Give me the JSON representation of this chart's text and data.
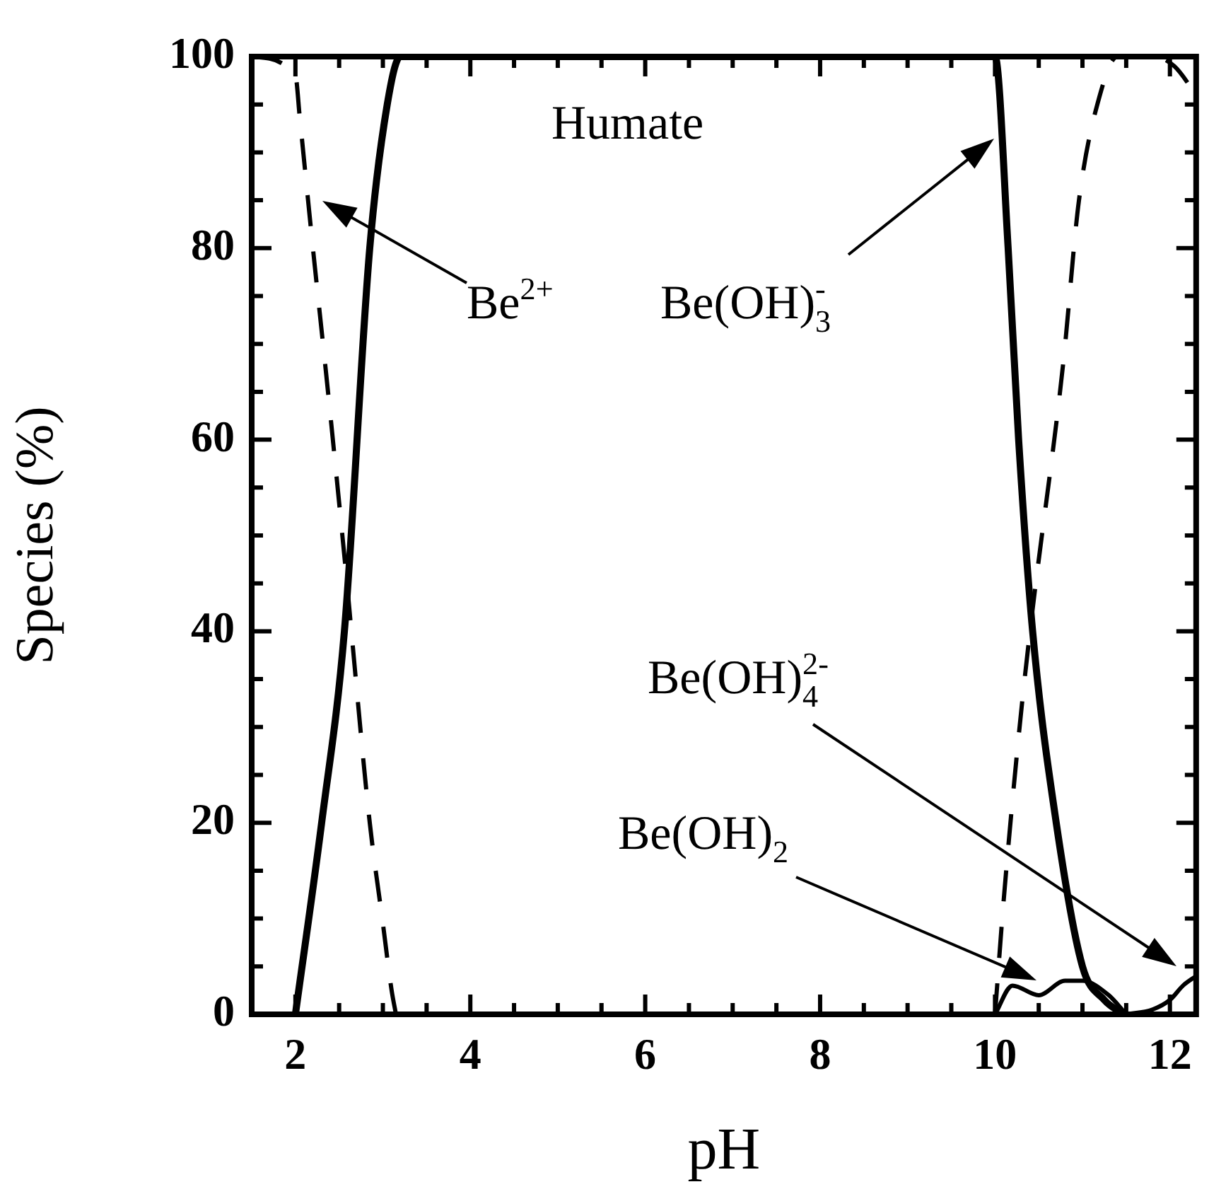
{
  "chart_data": {
    "type": "line",
    "xlabel": "pH",
    "ylabel": "Species (%)",
    "xlim": [
      1.5,
      12.3
    ],
    "ylim": [
      0,
      100
    ],
    "xticks": [
      2,
      {
        "value": 2.5,
        "label": null
      },
      {
        "value": 3,
        "label": null
      },
      {
        "value": 3.5,
        "label": null
      },
      4,
      {
        "value": 4.5,
        "label": null
      },
      {
        "value": 5,
        "label": null
      },
      {
        "value": 5.5,
        "label": null
      },
      6,
      {
        "value": 6.5,
        "label": null
      },
      {
        "value": 7,
        "label": null
      },
      {
        "value": 7.5,
        "label": null
      },
      8,
      {
        "value": 8.5,
        "label": null
      },
      {
        "value": 9,
        "label": null
      },
      {
        "value": 9.5,
        "label": null
      },
      10,
      {
        "value": 10.5,
        "label": null
      },
      {
        "value": 11,
        "label": null
      },
      {
        "value": 11.5,
        "label": null
      },
      12
    ],
    "yticks": [
      0,
      {
        "value": 5,
        "label": null
      },
      {
        "value": 10,
        "label": null
      },
      {
        "value": 15,
        "label": null
      },
      20,
      {
        "value": 25,
        "label": null
      },
      {
        "value": 30,
        "label": null
      },
      {
        "value": 35,
        "label": null
      },
      40,
      {
        "value": 45,
        "label": null
      },
      {
        "value": 50,
        "label": null
      },
      {
        "value": 55,
        "label": null
      },
      60,
      {
        "value": 65,
        "label": null
      },
      {
        "value": 70,
        "label": null
      },
      {
        "value": 75,
        "label": null
      },
      80,
      {
        "value": 85,
        "label": null
      },
      {
        "value": 90,
        "label": null
      },
      {
        "value": 95,
        "label": null
      },
      100
    ],
    "grid": false,
    "legend": false,
    "marker": "none",
    "series": [
      {
        "color": "#000000",
        "line_style": "solid",
        "x": [
          2.0,
          2.3,
          2.56,
          2.85,
          3.05,
          3.2,
          10.0,
          10.15,
          10.27,
          10.43,
          10.7,
          11.0,
          11.25,
          11.47
        ],
        "values": [
          0,
          20,
          40,
          80,
          95,
          100,
          100,
          80,
          60,
          40,
          20,
          5,
          1.5,
          0
        ]
      },
      {
        "color": "#000000",
        "line_style": "dashed",
        "x": [
          1.5,
          2.0,
          2.05,
          2.2,
          2.35,
          2.45,
          2.6,
          2.64,
          2.85,
          3.0,
          3.1,
          3.15
        ],
        "values": [
          100,
          98,
          93.6,
          80,
          67,
          58,
          44,
          40,
          20,
          9.5,
          2.5,
          0
        ]
      },
      {
        "color": "#000000",
        "line_style": "dashed",
        "x": [
          10.0,
          10.1,
          10.27,
          10.4,
          10.78,
          10.96,
          11.2,
          11.4,
          11.8,
          12.05,
          12.3
        ],
        "values": [
          0,
          12,
          29,
          40,
          68,
          85,
          96,
          100,
          100,
          99,
          96
        ]
      },
      {
        "color": "#000000",
        "line_style": "solid",
        "x": [
          10.0,
          10.2,
          10.5,
          10.8,
          11.0,
          11.3,
          11.5
        ],
        "values": [
          0,
          3,
          2,
          3.5,
          3.5,
          2,
          0
        ]
      },
      {
        "color": "#000000",
        "line_style": "solid",
        "x": [
          11.5,
          11.8,
          12.0,
          12.15,
          12.3
        ],
        "values": [
          0,
          0.5,
          1.5,
          3,
          4
        ]
      }
    ],
    "annotations": [
      "Humate",
      "Be$^{2+}$",
      "Be(OH)$_{3}$$^{-}$",
      "Be(OH)$_{4}$$^{2-}$",
      "Be(OH)$_{2}$"
    ]
  }
}
